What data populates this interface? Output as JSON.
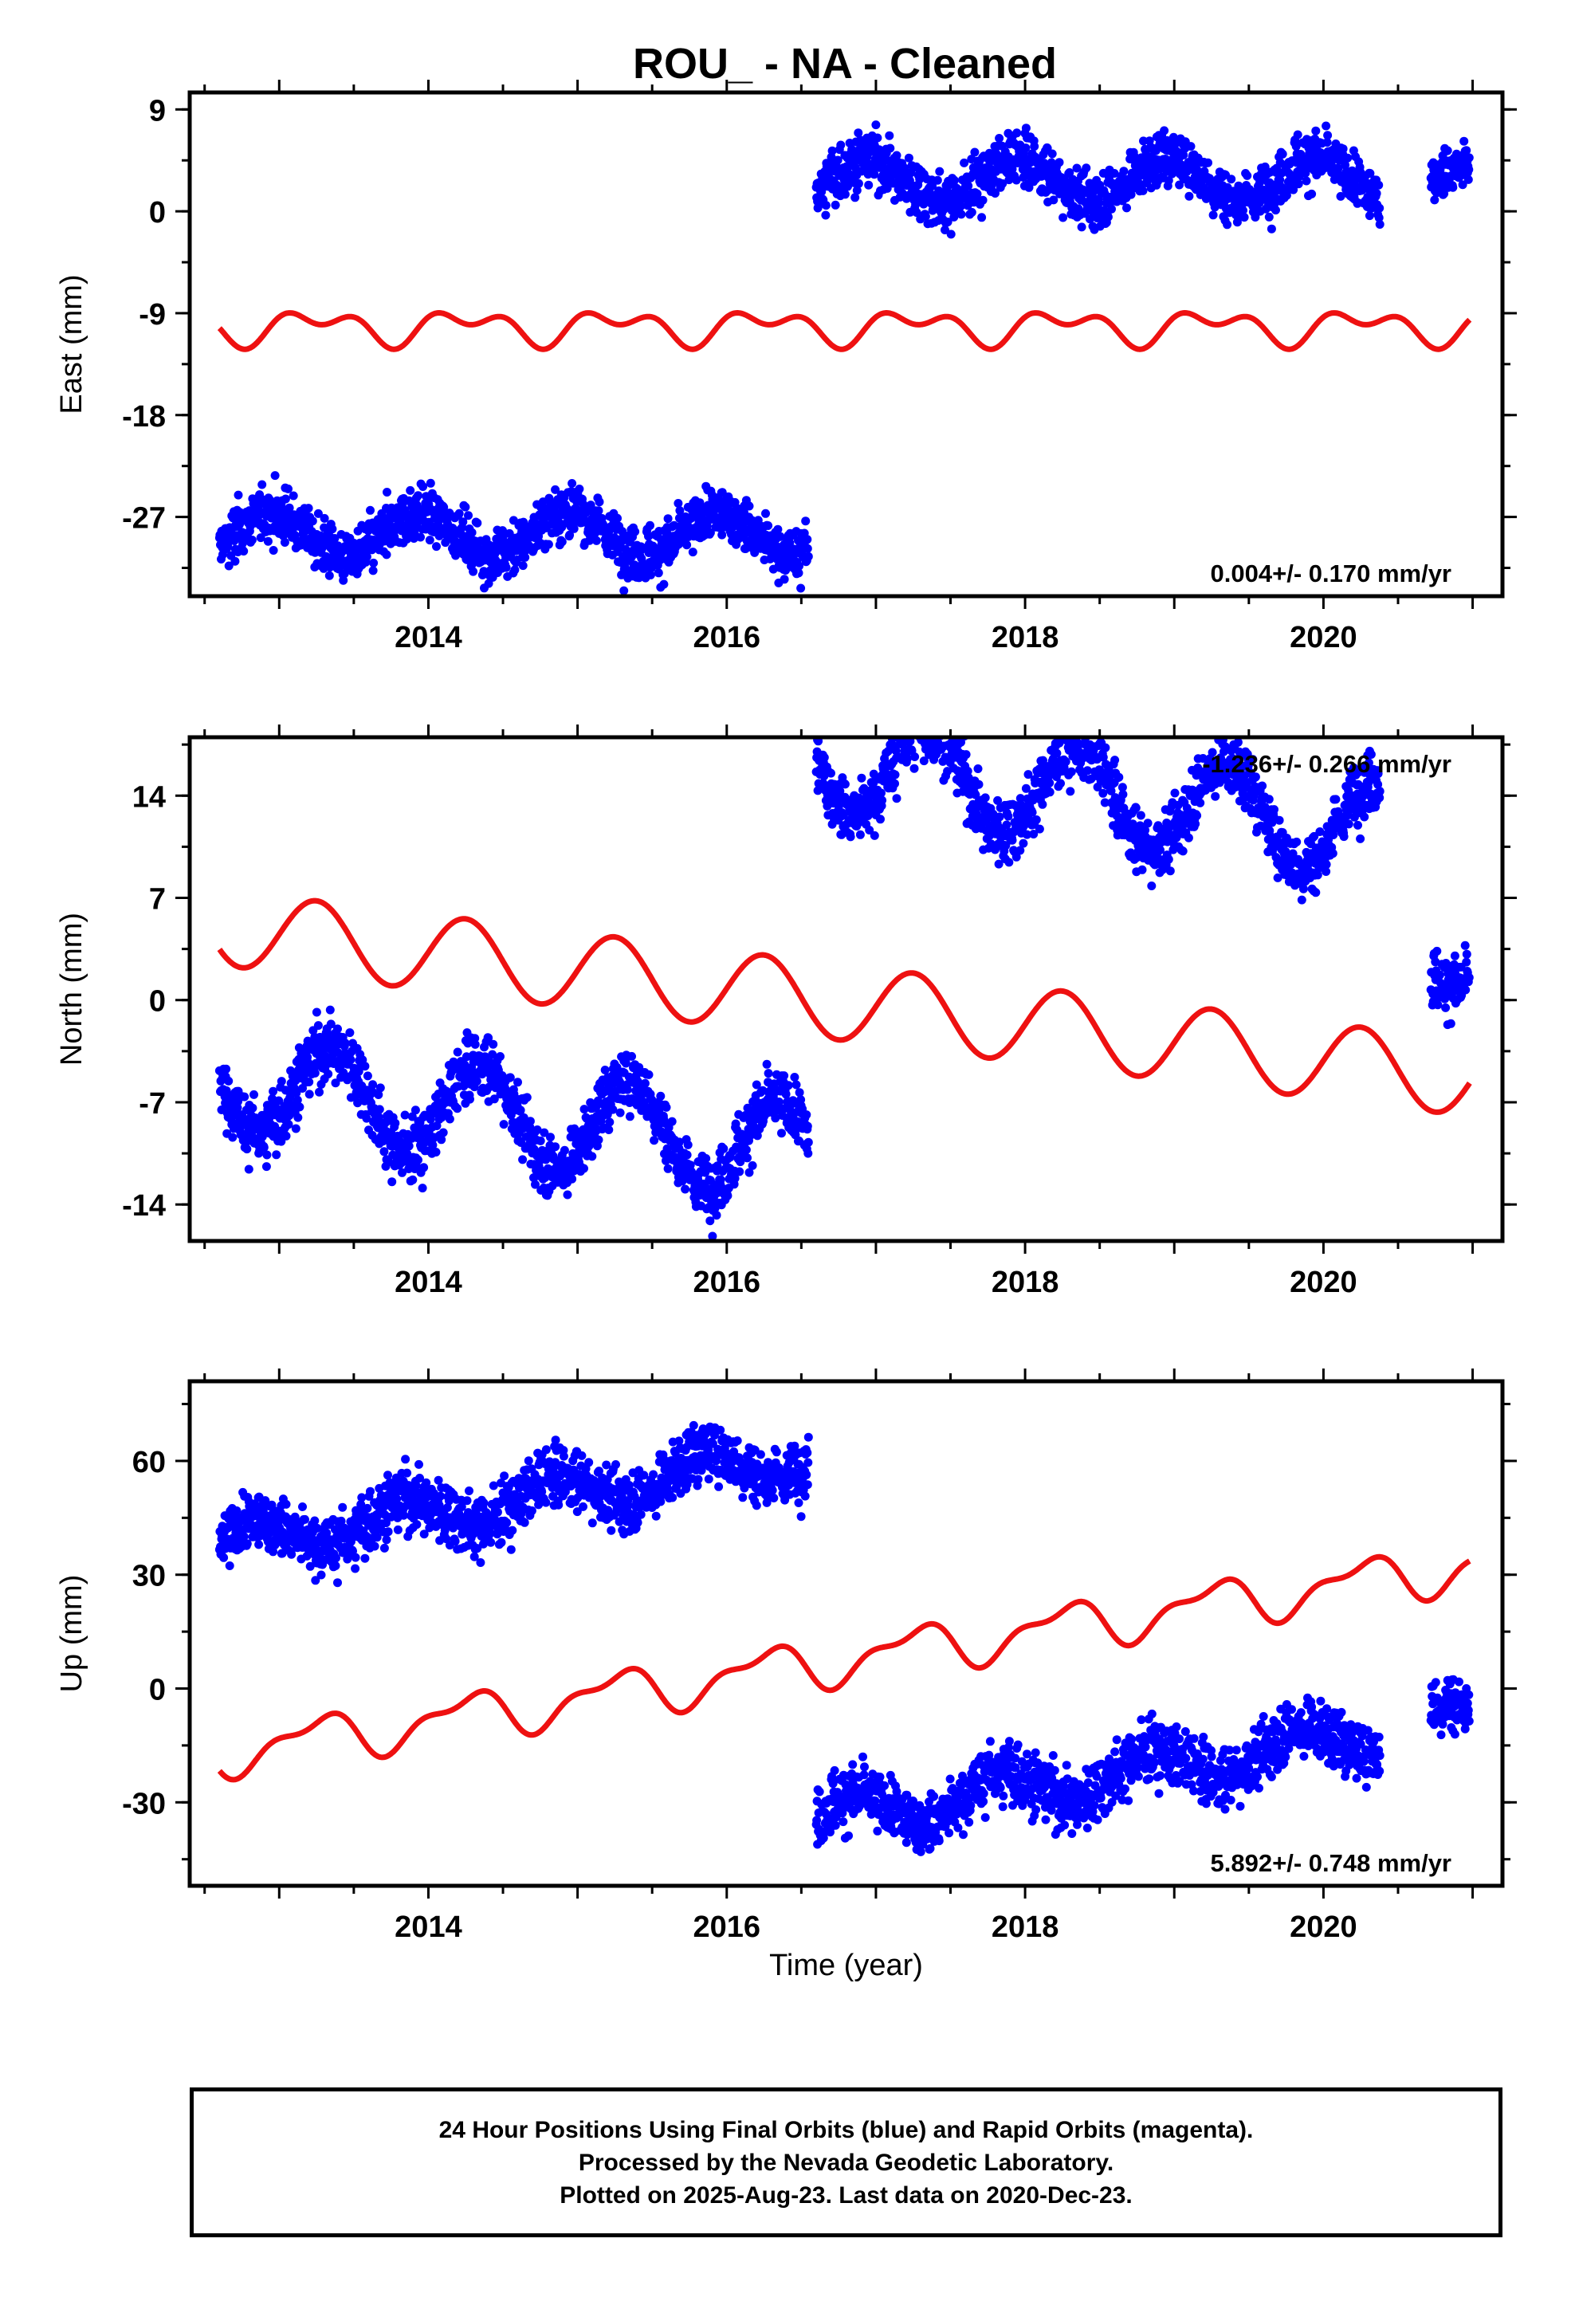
{
  "chart_data": {
    "type": "scatter",
    "title": "ROU_  - NA - Cleaned",
    "xlabel": "Time (year)",
    "xlim": [
      2012.4,
      2021.2
    ],
    "xticks": [
      2014,
      2016,
      2018,
      2020
    ],
    "colors": {
      "points": "#0000ff",
      "model": "#ee1111",
      "axes": "#000000"
    },
    "panels": [
      {
        "ylabel": "East (mm)",
        "ylim": [
          -34,
          10.5
        ],
        "yticks": [
          9,
          0,
          -9,
          -18,
          -27
        ],
        "rate": "0.004+/- 0.170 mm/yr",
        "rate_position": "bottom-right",
        "series": [
          {
            "kind": "points",
            "start": 2012.6,
            "end": 2016.55,
            "base": -28.5,
            "slope": 0.0,
            "annual_amp": 1.9,
            "annual_phase": 0.7,
            "noise": 1.2
          },
          {
            "kind": "points",
            "start": 2016.6,
            "end": 2020.38,
            "base": 2.8,
            "slope": 0.0,
            "annual_amp": 1.9,
            "annual_phase": 0.7,
            "noise": 1.2
          },
          {
            "kind": "points",
            "start": 2020.72,
            "end": 2020.98,
            "base": 2.9,
            "slope": 0.0,
            "annual_amp": 1.0,
            "annual_phase": 0.7,
            "noise": 1.1
          },
          {
            "kind": "model",
            "start": 2012.6,
            "end": 2020.98,
            "base": -10.2,
            "slope": 0.0,
            "annual_amp": 1.1,
            "annual_phase": 0.0,
            "semi_amp": 0.9,
            "semi_phase": 0.4
          }
        ]
      },
      {
        "ylabel": "North (mm)",
        "ylim": [
          -16.5,
          18
        ],
        "yticks": [
          14,
          7,
          0,
          -7,
          -14
        ],
        "rate": "-1.236+/- 0.266 mm/yr",
        "rate_position": "top-right",
        "series": [
          {
            "kind": "points",
            "start": 2012.6,
            "end": 2016.55,
            "base": -5.5,
            "slope": -1.236,
            "annual_amp": 3.3,
            "annual_phase": 0.1,
            "noise": 1.1
          },
          {
            "kind": "points",
            "start": 2016.6,
            "end": 2020.38,
            "base": 16.4,
            "slope": -1.236,
            "annual_amp": 3.3,
            "annual_phase": 0.1,
            "noise": 1.1
          },
          {
            "kind": "points",
            "start": 2020.72,
            "end": 2020.98,
            "base": 2.2,
            "slope": 0.0,
            "annual_amp": 1.2,
            "annual_phase": 0.1,
            "noise": 1.0
          },
          {
            "kind": "model",
            "start": 2012.6,
            "end": 2020.98,
            "base": 5.0,
            "slope": -1.236,
            "annual_amp": 2.6,
            "annual_phase": 0.0,
            "semi_amp": 0.0,
            "semi_phase": 0.0
          }
        ]
      },
      {
        "ylabel": "Up (mm)",
        "ylim": [
          -52,
          81
        ],
        "yticks": [
          60,
          30,
          0,
          -30
        ],
        "rate": "5.892+/- 0.748 mm/yr",
        "rate_position": "bottom-right",
        "series": [
          {
            "kind": "points",
            "start": 2012.6,
            "end": 2016.55,
            "base": 38.0,
            "slope": 5.892,
            "annual_amp": 5.0,
            "annual_phase": 0.6,
            "noise": 4.0
          },
          {
            "kind": "points",
            "start": 2016.6,
            "end": 2020.38,
            "base": -34.5,
            "slope": 5.892,
            "annual_amp": 5.0,
            "annual_phase": 0.6,
            "noise": 4.0
          },
          {
            "kind": "points",
            "start": 2020.72,
            "end": 2020.98,
            "base": -6.0,
            "slope": 0.0,
            "annual_amp": 2.0,
            "annual_phase": 0.6,
            "noise": 4.0
          },
          {
            "kind": "model",
            "start": 2012.6,
            "end": 2020.98,
            "base": -17.0,
            "slope": 5.892,
            "annual_amp": 5.5,
            "annual_phase": 0.0,
            "semi_amp": 2.5,
            "semi_phase": 0.3
          }
        ]
      }
    ],
    "footer": [
      "24 Hour Positions Using Final Orbits (blue) and Rapid Orbits (magenta).",
      "Processed by the Nevada Geodetic Laboratory.",
      "Plotted on 2025-Aug-23. Last data on 2020-Dec-23."
    ]
  }
}
